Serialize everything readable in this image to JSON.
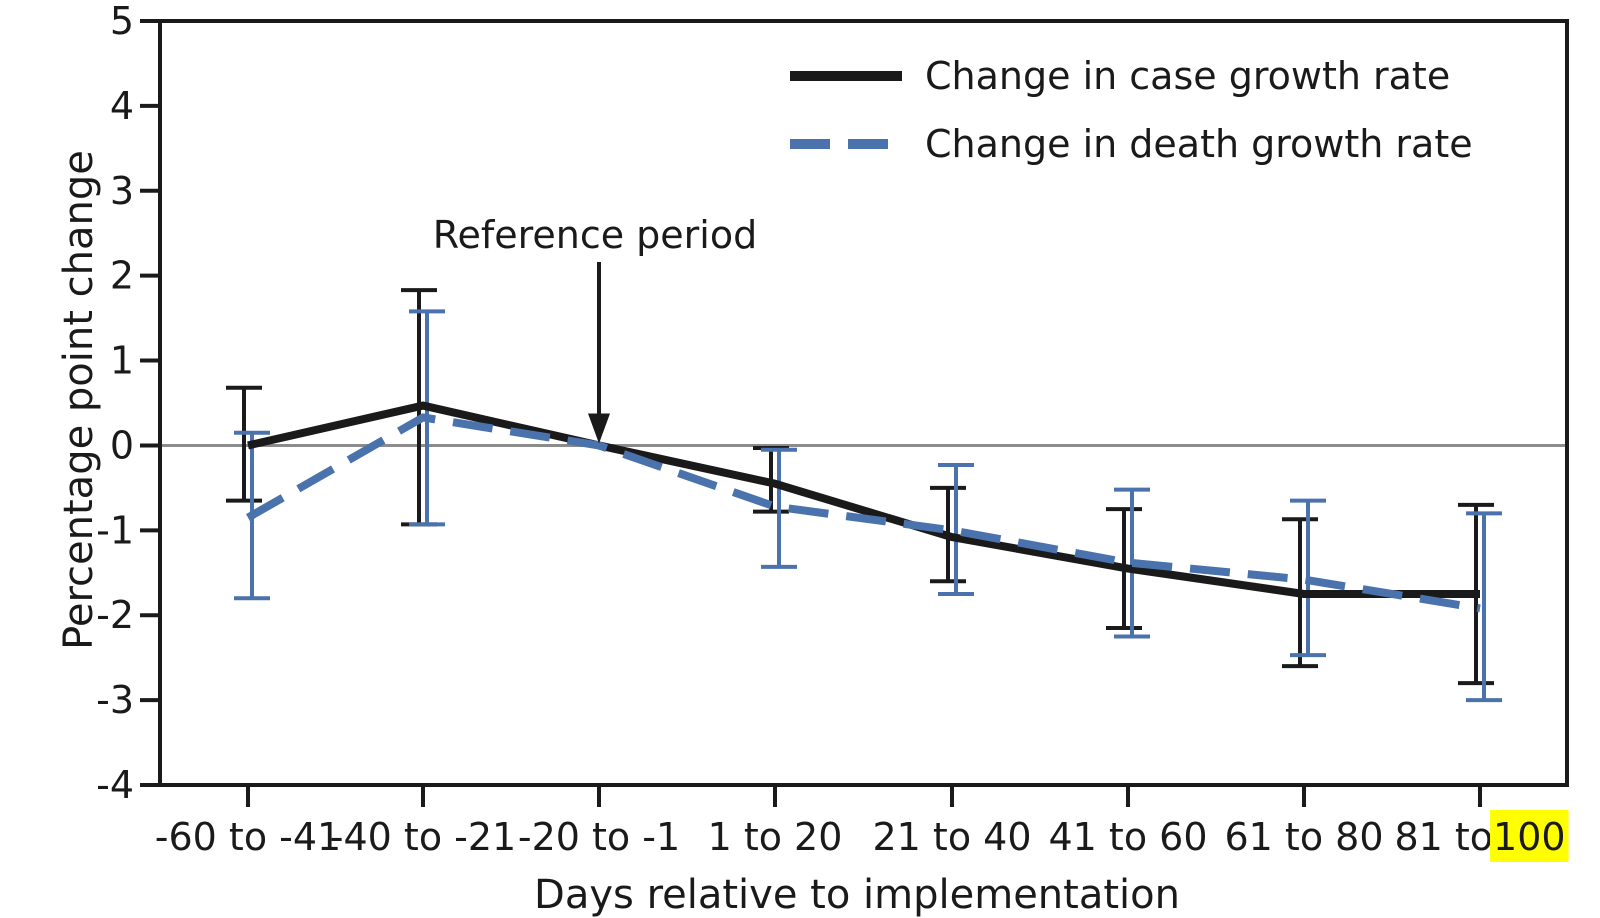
{
  "chart_data": {
    "type": "line",
    "title": "",
    "xlabel": "Days relative to implementation",
    "ylabel": "Percentage point change",
    "categories": [
      "-60 to -41",
      "-40 to -21",
      "-20 to -1",
      "1 to 20",
      "21 to 40",
      "41 to 60",
      "61 to 80",
      "81 to 100"
    ],
    "highlighted_tick_text": {
      "category_index": 7,
      "prefix": "81 to ",
      "highlight": "100",
      "highlight_color": "#ffff00"
    },
    "ylim": [
      -4,
      5
    ],
    "yticks": [
      5,
      4,
      3,
      2,
      1,
      0,
      -1,
      -2,
      -3,
      -4
    ],
    "grid": false,
    "zero_line": true,
    "legend_position": "top-right",
    "series": [
      {
        "name": "Change in case growth rate",
        "style": "solid",
        "color": "#1a1a1a",
        "values": [
          0.0,
          0.47,
          0.0,
          -0.45,
          -1.08,
          -1.45,
          -1.75,
          -1.75
        ],
        "ci_low": [
          -0.65,
          -0.93,
          null,
          -0.78,
          -1.6,
          -2.15,
          -2.6,
          -2.8
        ],
        "ci_high": [
          0.68,
          1.83,
          null,
          -0.03,
          -0.5,
          -0.75,
          -0.87,
          -0.7
        ]
      },
      {
        "name": "Change in death growth rate",
        "style": "dashed",
        "color": "#4a72ac",
        "values": [
          -0.85,
          0.33,
          0.0,
          -0.72,
          -1.0,
          -1.38,
          -1.58,
          -1.92
        ],
        "ci_low": [
          -1.8,
          -0.93,
          null,
          -1.43,
          -1.75,
          -2.25,
          -2.47,
          -3.0
        ],
        "ci_high": [
          0.15,
          1.58,
          null,
          -0.05,
          -0.23,
          -0.52,
          -0.65,
          -0.8
        ]
      }
    ],
    "annotations": [
      {
        "text": "Reference period",
        "category_index": 2,
        "y_value": 0,
        "arrow": "down"
      }
    ]
  }
}
